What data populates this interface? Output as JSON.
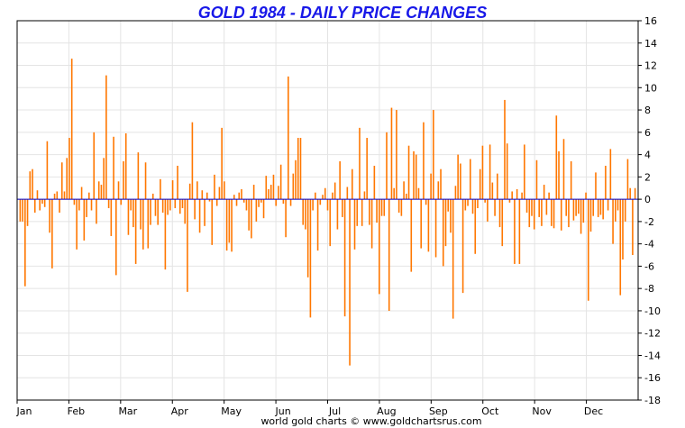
{
  "chart_data": {
    "type": "bar",
    "title": "GOLD 1984 - DAILY PRICE CHANGES",
    "credit": "world gold charts © www.goldchartsrus.com",
    "xlabel": "",
    "ylabel": "",
    "ylim": [
      -18,
      16
    ],
    "yticks": [
      16,
      14,
      12,
      10,
      8,
      6,
      4,
      2,
      0,
      -2,
      -4,
      -6,
      -8,
      -10,
      -12,
      -14,
      -16,
      -18
    ],
    "months": [
      "Jan",
      "Feb",
      "Mar",
      "Apr",
      "May",
      "Jun",
      "Jul",
      "Aug",
      "Sep",
      "Oct",
      "Nov",
      "Dec"
    ],
    "grid": true,
    "legend": "none",
    "colors": {
      "bar": "#ff7700",
      "zero_line": "#0000cc",
      "grid": "#e4e4e4",
      "title": "#1818e8"
    },
    "series": [
      {
        "values": [
          -2,
          -2,
          -7.8,
          -2.4,
          2.5,
          2.7,
          -1.2,
          0.8,
          -1,
          -0.4,
          -0.7,
          5.2,
          -3,
          -6.2,
          0.5,
          0.7,
          -1.2,
          3.3,
          0.7,
          3.7,
          5.5,
          12.6,
          -0.5,
          -4.5,
          -1,
          1.1,
          -3.7,
          -1.6,
          0.6,
          -1,
          6,
          -2.2,
          1.6,
          1.3,
          3.7,
          11.1,
          -0.8,
          -3.3,
          5.6,
          -6.8,
          1.6,
          -0.5,
          3.4,
          5.9,
          -3.2,
          -1,
          -2.5,
          -5.8,
          4.2,
          -2.7,
          -4.5,
          3.3,
          -4.4,
          -2.3,
          0.5,
          -1.5,
          -2.3,
          1.8,
          -1.2,
          -6.3,
          -1.4,
          -1,
          1.7,
          -0.8,
          3,
          -1.3,
          -0.8,
          -2.2,
          -8.3,
          1.4,
          6.9,
          -1.8,
          1.6,
          -3,
          0.8,
          -2.4,
          0.6,
          -0.2,
          -4.1,
          2.2,
          -0.6,
          1.1,
          6.4,
          1.6,
          -4.6,
          -3.9,
          -4.7,
          0.4,
          -0.6,
          0.6,
          0.9,
          -0.3,
          -1,
          -2.8,
          -3.5,
          1.3,
          -2,
          -0.7,
          -0.3,
          -1.7,
          2.1,
          0.9,
          1.3,
          2.2,
          -0.6,
          1.2,
          3.1,
          -0.4,
          -3.4,
          11,
          -0.6,
          2.3,
          3.5,
          5.5,
          5.5,
          -2.3,
          -2.7,
          -7,
          -10.6,
          -1,
          0.6,
          -4.6,
          -0.5,
          0.4,
          1,
          -1,
          -4.2,
          0.6,
          1.5,
          -2.7,
          3.4,
          -1.6,
          -10.5,
          1.1,
          -14.9,
          2.7,
          -4.5,
          -2.4,
          6.4,
          -2.4,
          0.7,
          5.5,
          -2.3,
          -4.4,
          3,
          -2.1,
          -8.5,
          -1.5,
          -1.5,
          6,
          -10,
          8.2,
          1,
          8,
          -1.2,
          -1.5,
          1.6,
          0.5,
          4.8,
          -6.5,
          4.3,
          4,
          1,
          -4.4,
          6.9,
          -0.5,
          -4.7,
          2.3,
          8,
          -5.2,
          1.6,
          2.7,
          -6,
          -4.2,
          -1.1,
          -3,
          -10.7,
          1.2,
          4,
          3.2,
          -8.4,
          -1,
          -0.6,
          3.6,
          -1.3,
          -4.9,
          -0.8,
          2.7,
          4.8,
          -0.3,
          -2,
          4.9,
          1.5,
          -1.5,
          2.3,
          -2.5,
          -4.2,
          8.9,
          5,
          -0.3,
          0.7,
          -5.8,
          0.9,
          -5.8,
          0.6,
          4.9,
          -1.2,
          -2.5,
          -1.5,
          -2.7,
          3.5,
          -1.6,
          -2.4,
          1.3,
          -1.4,
          0.6,
          -2.4,
          -2.6,
          7.5,
          4.3,
          -2.8,
          5.4,
          -1.5,
          -2.5,
          3.4,
          -1.9,
          -1.5,
          -1.3,
          -3.1,
          -2.1,
          0.6,
          -9.1,
          -2.9,
          -1.5,
          2.4,
          -1.6,
          -1.4,
          -1.8,
          3,
          -1,
          4.5,
          -4,
          -2,
          -1,
          -8.6,
          -5.4,
          -2,
          3.6,
          1,
          -5,
          1
        ]
      }
    ]
  }
}
